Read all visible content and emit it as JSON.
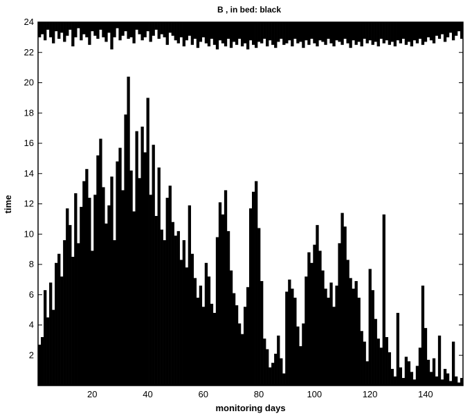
{
  "chart_data": {
    "type": "heatmap",
    "title": "B , in bed: black",
    "xlabel": "monitoring days",
    "ylabel": "time",
    "xlim": [
      1,
      153
    ],
    "ylim": [
      0,
      24
    ],
    "x_ticks": [
      20,
      40,
      60,
      80,
      100,
      120,
      140
    ],
    "y_ticks": [
      2,
      4,
      6,
      8,
      10,
      12,
      14,
      16,
      18,
      20,
      22,
      24
    ],
    "grid": false,
    "legend": "none",
    "colors": {
      "in_bed": "#000000",
      "not_in_bed": "#ffffff"
    },
    "value_meaning": "black cells = in bed; white = not in bed",
    "profiles": {
      "description": "approximate hours of continuous in-bed coverage per monitoring day",
      "evening_start_hour": [
        23.0,
        23.2,
        22.8,
        23.5,
        23.0,
        22.6,
        23.4,
        22.9,
        23.3,
        22.7,
        23.1,
        23.5,
        22.4,
        23.0,
        23.6,
        22.8,
        23.2,
        23.0,
        22.5,
        23.4,
        23.1,
        22.9,
        23.5,
        23.0,
        22.7,
        23.3,
        22.2,
        23.0,
        23.6,
        22.8,
        23.1,
        23.4,
        22.9,
        23.0,
        22.6,
        23.5,
        23.2,
        22.8,
        23.0,
        23.4,
        22.7,
        23.1,
        23.5,
        22.9,
        23.2,
        23.0,
        22.5,
        23.3,
        23.1,
        22.8,
        22.6,
        23.0,
        22.4,
        22.8,
        23.1,
        22.5,
        22.9,
        22.3,
        22.7,
        23.0,
        22.6,
        22.4,
        22.9,
        22.5,
        22.2,
        22.8,
        22.6,
        22.4,
        22.9,
        22.3,
        22.7,
        22.5,
        22.9,
        22.4,
        22.6,
        22.2,
        22.8,
        22.5,
        22.3,
        22.7,
        22.6,
        22.9,
        22.4,
        22.8,
        22.5,
        22.3,
        22.7,
        22.9,
        22.5,
        22.6,
        22.8,
        22.4,
        22.9,
        22.6,
        22.7,
        22.3,
        22.8,
        22.5,
        22.9,
        22.6,
        22.4,
        22.8,
        22.7,
        22.5,
        22.9,
        22.6,
        22.4,
        22.8,
        22.7,
        22.5,
        22.9,
        22.6,
        22.3,
        22.8,
        22.5,
        22.7,
        22.4,
        22.9,
        22.6,
        22.8,
        22.5,
        22.7,
        22.4,
        22.9,
        22.6,
        22.8,
        22.5,
        22.7,
        22.4,
        22.8,
        22.6,
        22.9,
        22.5,
        22.7,
        22.4,
        22.8,
        22.6,
        22.9,
        22.5,
        22.7,
        23.0,
        22.8,
        22.6,
        23.1,
        22.9,
        23.2,
        22.7,
        23.0,
        23.3,
        22.8,
        23.1,
        23.4,
        22.9
      ],
      "morning_end_hour": [
        2.7,
        3.2,
        6.3,
        4.5,
        6.8,
        5.0,
        8.1,
        8.7,
        7.2,
        9.6,
        11.7,
        10.6,
        8.5,
        12.7,
        9.4,
        11.8,
        13.5,
        14.3,
        12.4,
        8.9,
        12.6,
        15.2,
        16.3,
        13.1,
        10.7,
        11.9,
        13.8,
        9.6,
        14.8,
        15.7,
        12.9,
        17.9,
        20.4,
        14.2,
        11.5,
        16.8,
        13.7,
        17.1,
        15.4,
        19.0,
        12.6,
        15.9,
        11.2,
        14.4,
        10.3,
        9.6,
        12.4,
        13.2,
        10.8,
        9.9,
        10.2,
        8.3,
        9.6,
        7.8,
        11.9,
        8.7,
        7.1,
        5.8,
        6.6,
        5.2,
        8.1,
        7.2,
        5.4,
        4.8,
        9.8,
        12.1,
        11.3,
        12.9,
        10.2,
        7.6,
        6.1,
        5.3,
        4.1,
        3.4,
        5.2,
        6.5,
        11.7,
        12.8,
        13.5,
        10.4,
        6.9,
        3.1,
        2.4,
        1.2,
        1.5,
        2.1,
        3.3,
        1.8,
        0.8,
        6.2,
        7.0,
        6.4,
        5.8,
        3.9,
        2.6,
        4.1,
        7.2,
        8.8,
        8.1,
        9.3,
        10.6,
        8.9,
        7.6,
        6.4,
        5.8,
        6.8,
        5.2,
        6.6,
        9.4,
        11.4,
        10.5,
        8.3,
        7.1,
        6.4,
        6.9,
        5.8,
        3.6,
        2.9,
        1.6,
        7.7,
        6.3,
        4.4,
        3.1,
        2.5,
        11.3,
        3.2,
        2.2,
        1.1,
        0.6,
        4.8,
        1.2,
        0.5,
        1.9,
        1.6,
        0.9,
        0.4,
        1.3,
        2.5,
        6.6,
        3.8,
        1.7,
        0.9,
        1.8,
        0.6,
        3.3,
        0.4,
        1.1,
        0.8,
        0.3,
        2.9,
        0.6,
        0.2,
        0.5
      ]
    }
  }
}
